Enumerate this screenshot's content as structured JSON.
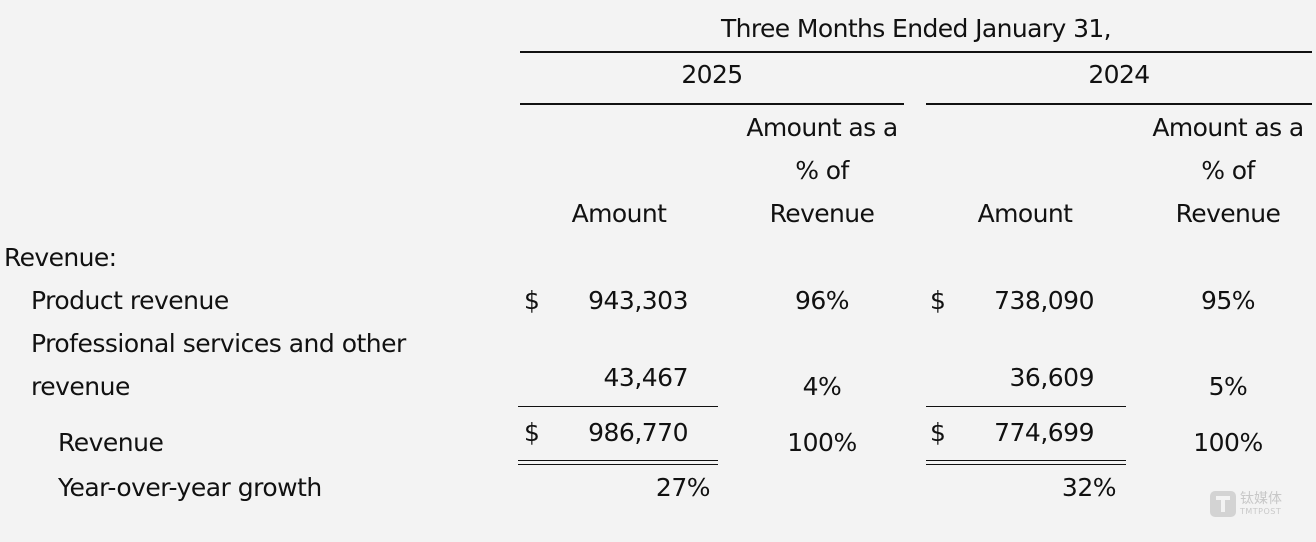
{
  "header": {
    "period_title": "Three Months Ended January 31,",
    "years": [
      "2025",
      "2024"
    ],
    "col_amount": "Amount",
    "col_pct_line1": "Amount as a",
    "col_pct_line2": "% of",
    "col_pct_line3": "Revenue"
  },
  "section_label": "Revenue:",
  "currency_symbol": "$",
  "rows": {
    "product": {
      "label": "Product revenue",
      "y2025_amount": "943,303",
      "y2025_pct": "96%",
      "y2024_amount": "738,090",
      "y2024_pct": "95%"
    },
    "services": {
      "label_line1": "Professional services and other",
      "label_line2": "revenue",
      "y2025_amount": "43,467",
      "y2025_pct": "4%",
      "y2024_amount": "36,609",
      "y2024_pct": "5%"
    },
    "total": {
      "label": "Revenue",
      "y2025_amount": "986,770",
      "y2025_pct": "100%",
      "y2024_amount": "774,699",
      "y2024_pct": "100%"
    },
    "growth": {
      "label": "Year-over-year growth",
      "y2025": "27%",
      "y2024": "32%"
    }
  },
  "watermark": {
    "cn": "钛媒体",
    "en": "TMTPOST"
  }
}
